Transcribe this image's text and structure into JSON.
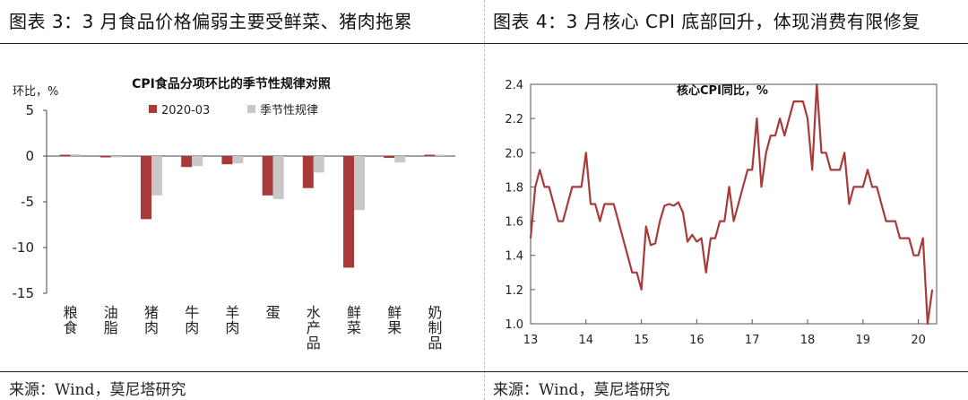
{
  "left_panel": {
    "title": "图表 3：3 月食品价格偏弱主要受鲜菜、猪肉拖累",
    "source": "来源：Wind，莫尼塔研究"
  },
  "right_panel": {
    "title": "图表 4：3 月核心 CPI 底部回升，体现消费有限修复",
    "source": "来源：Wind，莫尼塔研究"
  },
  "colors": {
    "series_a": "#a83a3a",
    "series_b": "#c8c8c8",
    "line": "#a83a3a"
  },
  "chart_data": [
    {
      "type": "bar",
      "title": "CPI食品分项环比的季节性规律对照",
      "ylabel": "环比，%",
      "ylim": [
        -15,
        5
      ],
      "yticks": [
        5,
        0,
        -5,
        -10,
        -15
      ],
      "categories": [
        "粮食",
        "油脂",
        "猪肉",
        "牛肉",
        "羊肉",
        "蛋",
        "水产品",
        "鲜菜",
        "鲜果",
        "奶制品"
      ],
      "legend_position": "top",
      "series": [
        {
          "name": "2020-03",
          "values": [
            0.0,
            -0.1,
            -6.9,
            -1.2,
            -0.9,
            -4.3,
            -3.5,
            -12.2,
            -0.2,
            0.0
          ]
        },
        {
          "name": "季节性规律",
          "values": [
            0.2,
            -0.1,
            -4.3,
            -1.1,
            -0.8,
            -4.7,
            -1.8,
            -5.9,
            -0.7,
            0.1
          ]
        }
      ]
    },
    {
      "type": "line",
      "title": "核心CPI同比，%",
      "ylim": [
        1.0,
        2.4
      ],
      "yticks": [
        "2.4",
        "2.2",
        "2.0",
        "1.8",
        "1.6",
        "1.4",
        "1.2",
        "1.0"
      ],
      "xlim": [
        2013,
        2020.33
      ],
      "xticks": [
        "13",
        "14",
        "15",
        "16",
        "17",
        "18",
        "19",
        "20"
      ],
      "series": [
        {
          "values": [
            1.5,
            1.8,
            1.9,
            1.8,
            1.8,
            1.7,
            1.6,
            1.6,
            1.7,
            1.8,
            1.8,
            1.8,
            2.0,
            1.7,
            1.7,
            1.6,
            1.7,
            1.7,
            1.7,
            1.6,
            1.5,
            1.4,
            1.3,
            1.3,
            1.2,
            1.57,
            1.46,
            1.47,
            1.6,
            1.69,
            1.7,
            1.69,
            1.71,
            1.65,
            1.48,
            1.52,
            1.48,
            1.5,
            1.3,
            1.5,
            1.5,
            1.6,
            1.6,
            1.8,
            1.6,
            1.7,
            1.8,
            1.9,
            1.9,
            2.2,
            1.8,
            2.0,
            2.1,
            2.1,
            2.2,
            2.1,
            2.2,
            2.3,
            2.3,
            2.3,
            2.2,
            1.9,
            2.4,
            2.0,
            2.0,
            1.9,
            1.9,
            1.9,
            2.0,
            1.7,
            1.8,
            1.8,
            1.8,
            1.9,
            1.8,
            1.8,
            1.7,
            1.6,
            1.6,
            1.6,
            1.5,
            1.5,
            1.5,
            1.4,
            1.4,
            1.5,
            1.0,
            1.2
          ]
        }
      ]
    }
  ]
}
